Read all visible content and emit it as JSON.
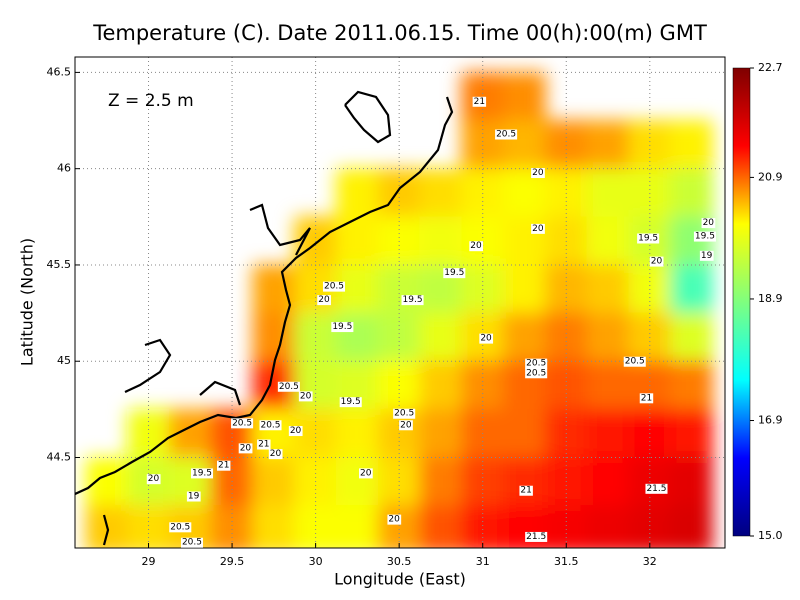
{
  "chart_data": {
    "type": "heatmap",
    "title": "Temperature (C). Date 2011.06.15. Time 00(h):00(m) GMT",
    "x_label": "Longitude (East)",
    "y_label": "Latitude (North)",
    "annotation": "Z = 2.5 m",
    "xlim": [
      28.56,
      32.45
    ],
    "ylim": [
      44.03,
      46.58
    ],
    "xticks": [
      29,
      29.5,
      30,
      30.5,
      31,
      31.5,
      32
    ],
    "yticks": [
      44.5,
      45,
      45.5,
      46,
      46.5
    ],
    "grid": true,
    "x": [
      28.75,
      29.0,
      29.25,
      29.5,
      29.75,
      30.0,
      30.25,
      30.5,
      30.75,
      31.0,
      31.25,
      31.5,
      31.75,
      32.0,
      32.25
    ],
    "y": [
      46.375,
      46.125,
      45.875,
      45.625,
      45.375,
      45.125,
      44.875,
      44.625,
      44.375,
      44.125
    ],
    "z": [
      [
        null,
        null,
        null,
        null,
        null,
        null,
        null,
        null,
        null,
        20.8,
        20.7,
        null,
        null,
        null,
        null
      ],
      [
        null,
        null,
        null,
        null,
        null,
        null,
        null,
        null,
        null,
        20.6,
        20.5,
        20.7,
        20.6,
        20.3,
        20.2
      ],
      [
        null,
        null,
        null,
        null,
        null,
        null,
        20.2,
        20.4,
        20.3,
        20.2,
        20.1,
        20.2,
        19.9,
        19.9,
        19.6
      ],
      [
        null,
        null,
        null,
        null,
        null,
        20.4,
        20.2,
        20.1,
        20.0,
        20.1,
        20.2,
        20.3,
        20.0,
        19.7,
        19.0
      ],
      [
        null,
        null,
        null,
        null,
        20.6,
        20.3,
        19.9,
        19.6,
        19.5,
        19.8,
        20.2,
        20.5,
        20.4,
        20.0,
        18.3
      ],
      [
        null,
        null,
        null,
        null,
        20.7,
        19.6,
        19.3,
        19.5,
        19.9,
        20.3,
        20.6,
        20.8,
        20.6,
        20.4,
        19.8
      ],
      [
        null,
        null,
        null,
        null,
        21.2,
        19.7,
        19.8,
        20.1,
        20.4,
        20.7,
        20.9,
        21.0,
        20.9,
        20.9,
        20.8
      ],
      [
        null,
        20.0,
        20.6,
        21.0,
        20.2,
        20.3,
        20.2,
        20.4,
        20.6,
        20.9,
        20.9,
        21.2,
        21.3,
        21.4,
        21.3
      ],
      [
        20.1,
        19.7,
        19.8,
        20.9,
        20.4,
        20.2,
        20.0,
        20.3,
        20.8,
        21.1,
        21.2,
        21.3,
        21.4,
        21.6,
        21.7
      ],
      [
        20.4,
        20.3,
        20.4,
        20.7,
        20.3,
        20.1,
        20.1,
        20.6,
        21.0,
        21.3,
        21.4,
        21.5,
        21.6,
        21.7,
        21.8
      ]
    ],
    "colorbar": {
      "range": [
        15.0,
        22.7
      ],
      "ticks": [
        {
          "value": 15.0,
          "label": "15.0"
        },
        16.9,
        18.9,
        20.9,
        22.7
      ],
      "colors": [
        "#00007f",
        "#0000ff",
        "#00ffff",
        "#7fff7f",
        "#ffff00",
        "#ff0000",
        "#7f0000"
      ]
    },
    "contour_labels": {
      "x": [
        30.98,
        31.14,
        31.33,
        31.33,
        31.99,
        32.35,
        32.33,
        32.34,
        32.04,
        30.96,
        30.83,
        30.11,
        30.05,
        30.58,
        30.16,
        31.02,
        31.32,
        31.32,
        31.91,
        31.98,
        29.84,
        29.94,
        30.21,
        30.53,
        30.54,
        29.73,
        29.56,
        29.88,
        29.69,
        29.58,
        29.76,
        29.45,
        29.32,
        29.03,
        29.27,
        30.3,
        31.26,
        32.04,
        30.47,
        29.19,
        29.26,
        31.32
      ],
      "y": [
        46.35,
        46.18,
        45.98,
        45.69,
        45.64,
        45.72,
        45.65,
        45.55,
        45.52,
        45.6,
        45.46,
        45.39,
        45.32,
        45.32,
        45.18,
        45.12,
        44.99,
        44.94,
        45.0,
        44.81,
        44.87,
        44.82,
        44.79,
        44.73,
        44.67,
        44.67,
        44.68,
        44.64,
        44.57,
        44.55,
        44.52,
        44.46,
        44.42,
        44.39,
        44.3,
        44.42,
        44.33,
        44.34,
        44.18,
        44.14,
        44.06,
        44.09
      ],
      "values": [
        21,
        20.5,
        20,
        20,
        19.5,
        20,
        19.5,
        19,
        20,
        20,
        19.5,
        20.5,
        20,
        19.5,
        19.5,
        20,
        20.5,
        20.5,
        20.5,
        21,
        20.5,
        20,
        19.5,
        20.5,
        20,
        20.5,
        20.5,
        20,
        21,
        20,
        20,
        21,
        19.5,
        20,
        19,
        20,
        21,
        21.5,
        20,
        20.5,
        20.5,
        21.5
      ]
    }
  }
}
